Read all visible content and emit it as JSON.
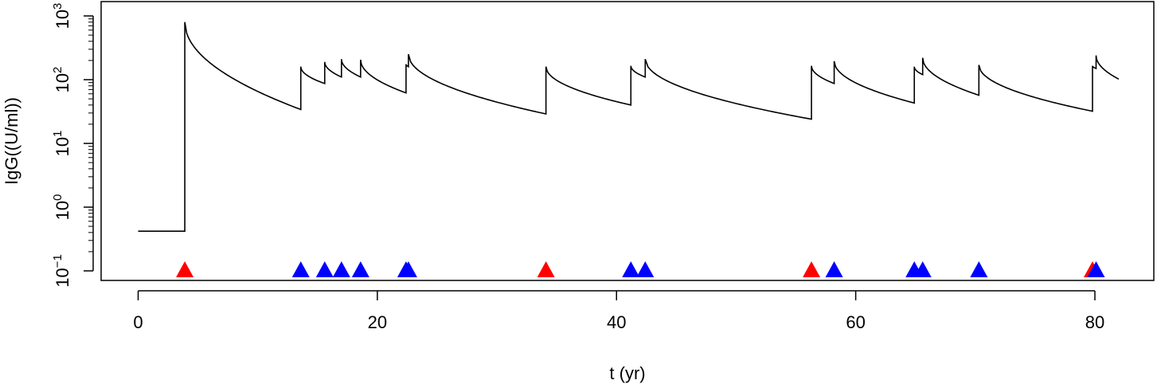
{
  "chart_data": {
    "type": "line",
    "title": "",
    "xlabel": "t (yr)",
    "ylabel": "IgG((U/ml))",
    "xlim": [
      0,
      80
    ],
    "ylim": [
      0.1,
      1000
    ],
    "y_scale": "log",
    "grid": false,
    "x_ticks": [
      {
        "value": 0,
        "label": "0"
      },
      {
        "value": 20,
        "label": "20"
      },
      {
        "value": 40,
        "label": "40"
      },
      {
        "value": 60,
        "label": "60"
      },
      {
        "value": 80,
        "label": "80"
      }
    ],
    "y_ticks": [
      {
        "value": 0.1,
        "base": "10",
        "exp": "−1"
      },
      {
        "value": 1,
        "base": "10",
        "exp": "0"
      },
      {
        "value": 10,
        "base": "10",
        "exp": "1"
      },
      {
        "value": 100,
        "base": "10",
        "exp": "2"
      },
      {
        "value": 1000,
        "base": "10",
        "exp": "3"
      }
    ],
    "series": [
      {
        "color": "#000000",
        "segments": [
          {
            "x0": 0,
            "x1": 3.9,
            "y_start": 0.42,
            "y_end": 0.42
          },
          {
            "x0": 3.9,
            "x1": 13.6,
            "y_start": 800,
            "y_end": 34
          },
          {
            "x0": 13.6,
            "x1": 15.6,
            "y_start": 160,
            "y_end": 87
          },
          {
            "x0": 15.6,
            "x1": 17.0,
            "y_start": 190,
            "y_end": 110
          },
          {
            "x0": 17.0,
            "x1": 18.6,
            "y_start": 210,
            "y_end": 110
          },
          {
            "x0": 18.6,
            "x1": 22.4,
            "y_start": 205,
            "y_end": 62
          },
          {
            "x0": 22.4,
            "x1": 22.6,
            "y_start": 175,
            "y_end": 160
          },
          {
            "x0": 22.6,
            "x1": 34.1,
            "y_start": 250,
            "y_end": 29
          },
          {
            "x0": 34.1,
            "x1": 41.2,
            "y_start": 160,
            "y_end": 40
          },
          {
            "x0": 41.2,
            "x1": 42.4,
            "y_start": 165,
            "y_end": 110
          },
          {
            "x0": 42.4,
            "x1": 56.3,
            "y_start": 210,
            "y_end": 24
          },
          {
            "x0": 56.3,
            "x1": 58.2,
            "y_start": 165,
            "y_end": 87
          },
          {
            "x0": 58.2,
            "x1": 64.9,
            "y_start": 195,
            "y_end": 43
          },
          {
            "x0": 64.9,
            "x1": 65.6,
            "y_start": 160,
            "y_end": 120
          },
          {
            "x0": 65.6,
            "x1": 70.3,
            "y_start": 220,
            "y_end": 57
          },
          {
            "x0": 70.3,
            "x1": 79.8,
            "y_start": 170,
            "y_end": 32
          },
          {
            "x0": 79.8,
            "x1": 80.1,
            "y_start": 165,
            "y_end": 150
          },
          {
            "x0": 80.1,
            "x1": 82.0,
            "y_start": 240,
            "y_end": 102
          }
        ]
      }
    ],
    "markers": {
      "y": 0.1,
      "shape": "triangle",
      "points": [
        {
          "x": 3.9,
          "color": "#ff0000"
        },
        {
          "x": 13.6,
          "color": "#0000ff"
        },
        {
          "x": 15.6,
          "color": "#0000ff"
        },
        {
          "x": 17.0,
          "color": "#0000ff"
        },
        {
          "x": 18.6,
          "color": "#0000ff"
        },
        {
          "x": 22.4,
          "color": "#0000ff"
        },
        {
          "x": 22.6,
          "color": "#0000ff"
        },
        {
          "x": 34.1,
          "color": "#ff0000"
        },
        {
          "x": 41.2,
          "color": "#0000ff"
        },
        {
          "x": 42.4,
          "color": "#0000ff"
        },
        {
          "x": 56.3,
          "color": "#ff0000"
        },
        {
          "x": 58.2,
          "color": "#0000ff"
        },
        {
          "x": 64.9,
          "color": "#0000ff"
        },
        {
          "x": 65.6,
          "color": "#0000ff"
        },
        {
          "x": 70.3,
          "color": "#0000ff"
        },
        {
          "x": 79.8,
          "color": "#ff0000"
        },
        {
          "x": 80.1,
          "color": "#0000ff"
        }
      ]
    }
  }
}
